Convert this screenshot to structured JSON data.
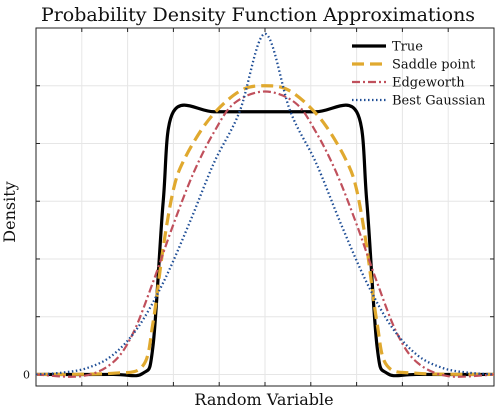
{
  "chart_data": {
    "type": "line",
    "title": "Probability Density Function Approximations",
    "xlabel": "Random Variable",
    "ylabel": "Density",
    "xlim": [
      -2.25,
      2.25
    ],
    "ylim": [
      -0.02,
      0.6
    ],
    "y_tick_labels": [
      {
        "value": 0,
        "label": "0"
      }
    ],
    "grid": true,
    "legend_position": "top-right",
    "series": [
      {
        "name": "True",
        "color": "#000000",
        "style": "solid",
        "x": [
          -2.25,
          -1.5,
          -1.2,
          -1.1,
          -1.0,
          -0.9,
          -0.5,
          0.0,
          0.5,
          0.9,
          1.0,
          1.1,
          1.2,
          1.5,
          2.25
        ],
        "y": [
          0.0,
          0.0,
          0.002,
          0.05,
          0.3,
          0.455,
          0.455,
          0.455,
          0.455,
          0.455,
          0.3,
          0.05,
          0.002,
          0.0,
          0.0
        ]
      },
      {
        "name": "Saddle point",
        "color": "#E0A92F",
        "style": "dashed",
        "x": [
          -2.25,
          -1.5,
          -1.2,
          -1.1,
          -1.0,
          -0.9,
          -0.8,
          -0.6,
          -0.4,
          -0.2,
          0.0,
          0.2,
          0.4,
          0.6,
          0.8,
          0.9,
          1.0,
          1.1,
          1.2,
          1.5,
          2.25
        ],
        "y": [
          0.0,
          0.002,
          0.015,
          0.09,
          0.22,
          0.32,
          0.37,
          0.43,
          0.47,
          0.495,
          0.5,
          0.495,
          0.47,
          0.43,
          0.37,
          0.32,
          0.22,
          0.09,
          0.015,
          0.002,
          0.0
        ]
      },
      {
        "name": "Edgeworth",
        "color": "#C0505C",
        "style": "dashdot",
        "x": [
          -2.25,
          -1.8,
          -1.5,
          -1.3,
          -1.1,
          -0.9,
          -0.7,
          -0.5,
          -0.3,
          0.0,
          0.3,
          0.5,
          0.7,
          0.9,
          1.1,
          1.3,
          1.5,
          1.8,
          2.25
        ],
        "y": [
          0.0,
          -0.003,
          0.02,
          0.07,
          0.16,
          0.26,
          0.35,
          0.42,
          0.47,
          0.49,
          0.47,
          0.42,
          0.35,
          0.26,
          0.16,
          0.07,
          0.02,
          -0.003,
          0.0
        ]
      },
      {
        "name": "Best Gaussian",
        "color": "#1F4E96",
        "style": "dotted",
        "x": [
          -2.25,
          -2.0,
          -1.75,
          -1.5,
          -1.25,
          -1.0,
          -0.75,
          -0.5,
          -0.25,
          0.0,
          0.25,
          0.5,
          0.75,
          1.0,
          1.25,
          1.5,
          1.75,
          2.0,
          2.25
        ],
        "y": [
          0.0,
          0.003,
          0.011,
          0.033,
          0.081,
          0.159,
          0.259,
          0.367,
          0.455,
          0.59,
          0.455,
          0.367,
          0.259,
          0.159,
          0.081,
          0.033,
          0.011,
          0.003,
          0.0
        ]
      }
    ]
  }
}
